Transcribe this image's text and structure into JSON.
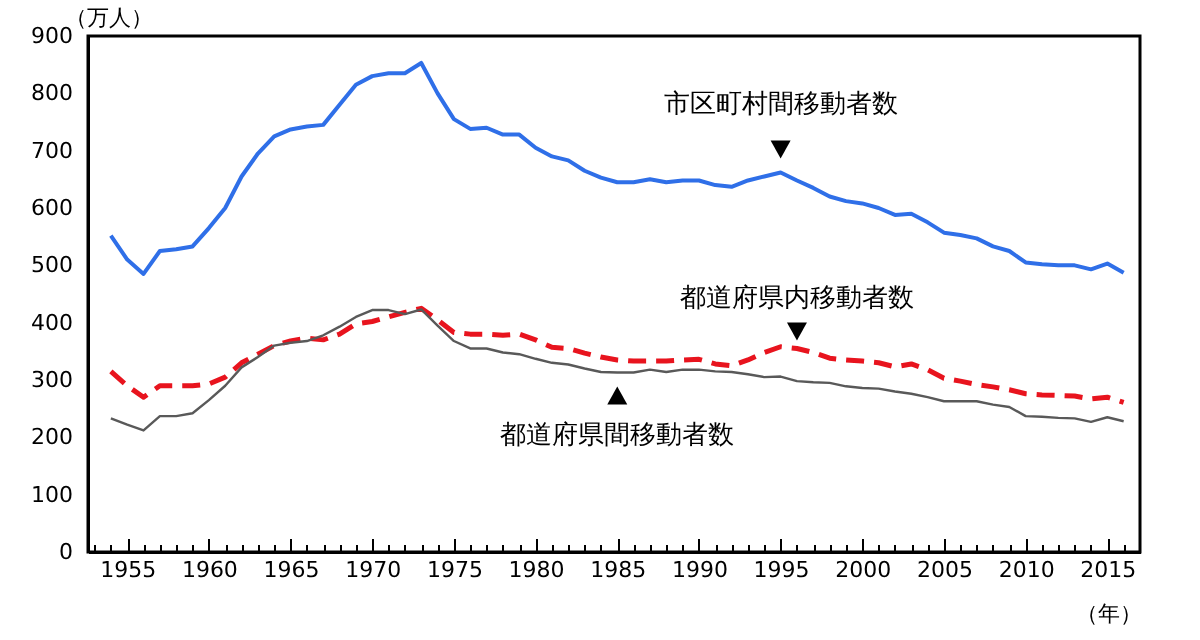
{
  "chart_data": {
    "type": "line",
    "xlabel": "（年）",
    "ylabel": "（万人）",
    "x": [
      1954,
      1955,
      1956,
      1957,
      1958,
      1959,
      1960,
      1961,
      1962,
      1963,
      1964,
      1965,
      1966,
      1967,
      1968,
      1969,
      1970,
      1971,
      1972,
      1973,
      1974,
      1975,
      1976,
      1977,
      1978,
      1979,
      1980,
      1981,
      1982,
      1983,
      1984,
      1985,
      1986,
      1987,
      1988,
      1989,
      1990,
      1991,
      1992,
      1993,
      1994,
      1995,
      1996,
      1997,
      1998,
      1999,
      2000,
      2001,
      2002,
      2003,
      2004,
      2005,
      2006,
      2007,
      2008,
      2009,
      2010,
      2011,
      2012,
      2013,
      2014,
      2015,
      2016
    ],
    "series": [
      {
        "name": "市区町村間移動者数",
        "color": "#2f6fe8",
        "values": [
          552,
          510,
          485,
          525,
          528,
          533,
          565,
          600,
          655,
          695,
          725,
          737,
          742,
          745,
          780,
          815,
          830,
          835,
          835,
          853,
          800,
          755,
          738,
          740,
          728,
          728,
          705,
          690,
          683,
          665,
          653,
          645,
          645,
          650,
          645,
          648,
          648,
          640,
          637,
          648,
          655,
          662,
          648,
          635,
          620,
          612,
          608,
          600,
          588,
          590,
          575,
          557,
          553,
          547,
          533,
          525,
          505,
          502,
          500,
          500,
          493,
          503,
          487
        ]
      },
      {
        "name": "都道府県内移動者数",
        "color": "#e8141e",
        "line_style": "dashed",
        "values": [
          315,
          290,
          270,
          290,
          290,
          290,
          293,
          305,
          330,
          345,
          360,
          368,
          373,
          370,
          380,
          398,
          402,
          410,
          418,
          425,
          405,
          383,
          380,
          380,
          378,
          380,
          370,
          357,
          355,
          347,
          340,
          335,
          333,
          333,
          333,
          335,
          336,
          328,
          325,
          335,
          348,
          358,
          355,
          348,
          338,
          335,
          333,
          330,
          323,
          328,
          318,
          303,
          298,
          292,
          288,
          283,
          276,
          274,
          273,
          272,
          267,
          270,
          261
        ]
      },
      {
        "name": "都道府県間移動者数",
        "color": "#595959",
        "values": [
          233,
          222,
          212,
          237,
          237,
          242,
          265,
          290,
          322,
          340,
          360,
          365,
          368,
          378,
          393,
          410,
          422,
          422,
          415,
          423,
          395,
          368,
          355,
          355,
          348,
          345,
          337,
          330,
          327,
          320,
          314,
          313,
          313,
          318,
          314,
          318,
          318,
          315,
          314,
          310,
          305,
          306,
          298,
          296,
          295,
          289,
          286,
          285,
          280,
          276,
          270,
          263,
          263,
          263,
          257,
          253,
          237,
          236,
          234,
          233,
          227,
          235,
          228
        ]
      }
    ],
    "xlim": [
      1952.6,
      2017
    ],
    "xticks": [
      {
        "value": 1953,
        "label": null
      },
      {
        "value": 1954,
        "label": null
      },
      1955,
      {
        "value": 1956,
        "label": null
      },
      {
        "value": 1957,
        "label": null
      },
      {
        "value": 1958,
        "label": null
      },
      {
        "value": 1959,
        "label": null
      },
      1960,
      {
        "value": 1961,
        "label": null
      },
      {
        "value": 1962,
        "label": null
      },
      {
        "value": 1963,
        "label": null
      },
      {
        "value": 1964,
        "label": null
      },
      1965,
      {
        "value": 1966,
        "label": null
      },
      {
        "value": 1967,
        "label": null
      },
      {
        "value": 1968,
        "label": null
      },
      {
        "value": 1969,
        "label": null
      },
      1970,
      {
        "value": 1971,
        "label": null
      },
      {
        "value": 1972,
        "label": null
      },
      {
        "value": 1973,
        "label": null
      },
      {
        "value": 1974,
        "label": null
      },
      1975,
      {
        "value": 1976,
        "label": null
      },
      {
        "value": 1977,
        "label": null
      },
      {
        "value": 1978,
        "label": null
      },
      {
        "value": 1979,
        "label": null
      },
      1980,
      {
        "value": 1981,
        "label": null
      },
      {
        "value": 1982,
        "label": null
      },
      {
        "value": 1983,
        "label": null
      },
      {
        "value": 1984,
        "label": null
      },
      1985,
      {
        "value": 1986,
        "label": null
      },
      {
        "value": 1987,
        "label": null
      },
      {
        "value": 1988,
        "label": null
      },
      {
        "value": 1989,
        "label": null
      },
      1990,
      {
        "value": 1991,
        "label": null
      },
      {
        "value": 1992,
        "label": null
      },
      {
        "value": 1993,
        "label": null
      },
      {
        "value": 1994,
        "label": null
      },
      1995,
      {
        "value": 1996,
        "label": null
      },
      {
        "value": 1997,
        "label": null
      },
      {
        "value": 1998,
        "label": null
      },
      {
        "value": 1999,
        "label": null
      },
      2000,
      {
        "value": 2001,
        "label": null
      },
      {
        "value": 2002,
        "label": null
      },
      {
        "value": 2003,
        "label": null
      },
      {
        "value": 2004,
        "label": null
      },
      2005,
      {
        "value": 2006,
        "label": null
      },
      {
        "value": 2007,
        "label": null
      },
      {
        "value": 2008,
        "label": null
      },
      {
        "value": 2009,
        "label": null
      },
      2010,
      {
        "value": 2011,
        "label": null
      },
      {
        "value": 2012,
        "label": null
      },
      {
        "value": 2013,
        "label": null
      },
      {
        "value": 2014,
        "label": null
      },
      2015,
      {
        "value": 2016,
        "label": null
      }
    ],
    "ylim": [
      0,
      900
    ],
    "yticks": [
      0,
      100,
      200,
      300,
      400,
      500,
      600,
      700,
      800,
      900
    ],
    "grid": false,
    "legend": false,
    "marker": "none"
  }
}
